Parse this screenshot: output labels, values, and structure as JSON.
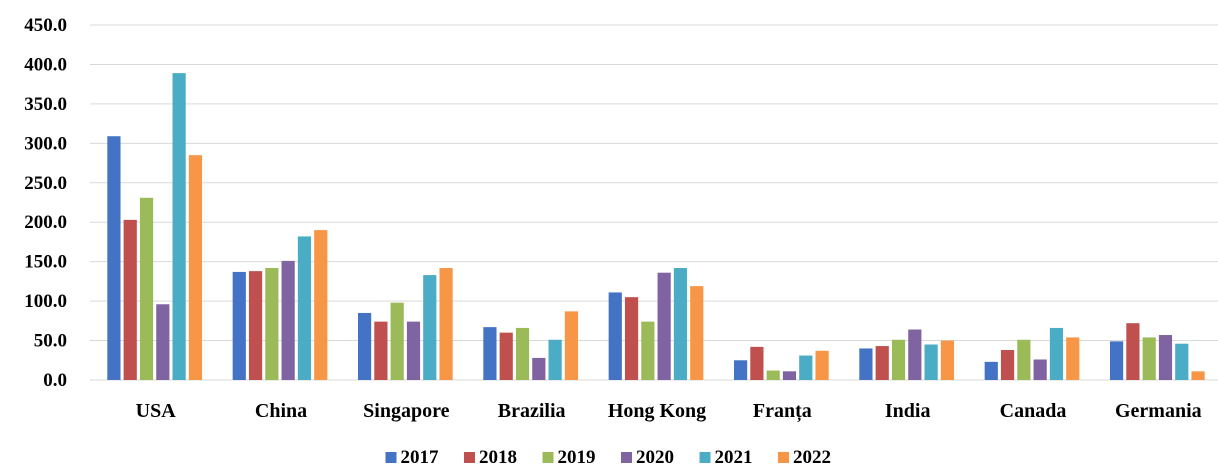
{
  "chart_data": {
    "type": "bar",
    "title": "",
    "xlabel": "",
    "ylabel": "",
    "ylim": [
      0,
      450
    ],
    "yticks": [
      "0.0",
      "50.0",
      "100.0",
      "150.0",
      "200.0",
      "250.0",
      "300.0",
      "350.0",
      "400.0",
      "450.0"
    ],
    "grid": true,
    "legend_position": "bottom",
    "categories": [
      "USA",
      "China",
      "Singapore",
      "Brazilia",
      "Hong Kong",
      "Franța",
      "India",
      "Canada",
      "Germania"
    ],
    "series": [
      {
        "name": "2017",
        "color": "#4472C4",
        "values": [
          309,
          137,
          85,
          67,
          111,
          25,
          40,
          23,
          49
        ]
      },
      {
        "name": "2018",
        "color": "#C0504D",
        "values": [
          203,
          138,
          74,
          60,
          105,
          42,
          43,
          38,
          72
        ]
      },
      {
        "name": "2019",
        "color": "#9BBB59",
        "values": [
          231,
          142,
          98,
          66,
          74,
          12,
          51,
          51,
          54
        ]
      },
      {
        "name": "2020",
        "color": "#8064A2",
        "values": [
          96,
          151,
          74,
          28,
          136,
          11,
          64,
          26,
          57
        ]
      },
      {
        "name": "2021",
        "color": "#4BACC6",
        "values": [
          389,
          182,
          133,
          51,
          142,
          31,
          45,
          66,
          46
        ]
      },
      {
        "name": "2022",
        "color": "#F79646",
        "values": [
          285,
          190,
          142,
          87,
          119,
          37,
          50,
          54,
          11
        ]
      }
    ]
  }
}
